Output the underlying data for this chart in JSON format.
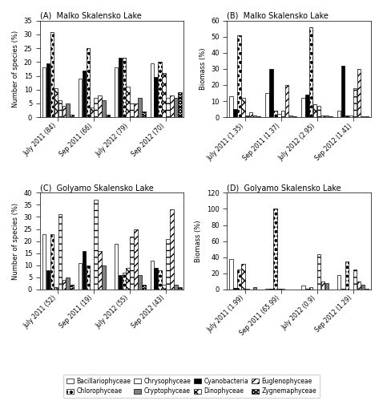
{
  "panel_A": {
    "title": "(A)  Malko Skalensko Lake",
    "ylabel": "Number of species (%)",
    "ylim": [
      0,
      35
    ],
    "yticks": [
      0,
      5,
      10,
      15,
      20,
      25,
      30,
      35
    ],
    "xticklabels": [
      "July 2011 (84)",
      "Sep 2011 (66)",
      "July 2012 (79)",
      "Sep 2012 (70)"
    ],
    "groups": [
      [
        18,
        19.5,
        31,
        10.5,
        6,
        4,
        5,
        1
      ],
      [
        14,
        17,
        25,
        3.5,
        7,
        8,
        6,
        1
      ],
      [
        18,
        21.5,
        21.5,
        11,
        5,
        5,
        7,
        2
      ],
      [
        19.5,
        14.5,
        20,
        16,
        7,
        8,
        7,
        9
      ]
    ]
  },
  "panel_B": {
    "title": "(B)  Malko Skalensko Lake",
    "ylabel": "Biomass (%)",
    "ylim": [
      0,
      60
    ],
    "yticks": [
      0,
      10,
      20,
      30,
      40,
      50,
      60
    ],
    "xticklabels": [
      "July 2011 (1.35)",
      "Sep 2011 (1.37)",
      "July 2012 (2.95)",
      "Sep 2012 (1.41)"
    ],
    "groups": [
      [
        13,
        5,
        51,
        12,
        1,
        3,
        1,
        0.5
      ],
      [
        15,
        30,
        4,
        2,
        4,
        20,
        1,
        0.5
      ],
      [
        12,
        14,
        56,
        8,
        7,
        1,
        1,
        0.5
      ],
      [
        4,
        32,
        1,
        1,
        18,
        30,
        0.5,
        0.5
      ]
    ]
  },
  "panel_C": {
    "title": "(C)  Golyamo Skalensko Lake",
    "ylabel": "Number of species (%)",
    "ylim": [
      0,
      40
    ],
    "yticks": [
      0,
      5,
      10,
      15,
      20,
      25,
      30,
      35,
      40
    ],
    "xticklabels": [
      "July 2011 (52)",
      "Sep 2011 (19)",
      "July 2012 (55)",
      "Sep 2012 (43)"
    ],
    "groups": [
      [
        23,
        8,
        23,
        1,
        31,
        4,
        5,
        2
      ],
      [
        11,
        16,
        10,
        0,
        37,
        16,
        10,
        0
      ],
      [
        19,
        6,
        7,
        9,
        22,
        25,
        6,
        2
      ],
      [
        12,
        9,
        8,
        2,
        21,
        33,
        2,
        1
      ]
    ]
  },
  "panel_D": {
    "title": "(D)  Golyamo Skalensko Lake",
    "ylabel": "Biomass (%)",
    "ylim": [
      0,
      120
    ],
    "yticks": [
      0,
      20,
      40,
      60,
      80,
      100,
      120
    ],
    "xticklabels": [
      "July 2011 (1.99)",
      "Sep 2011 (65.99)",
      "July 2012 (0.9)",
      "Sep 2012 (1.29)"
    ],
    "groups": [
      [
        38,
        2,
        25,
        32,
        1,
        0,
        3,
        0
      ],
      [
        1,
        0.5,
        100,
        1,
        0.5,
        0,
        0,
        0
      ],
      [
        5,
        0.5,
        3,
        0,
        44,
        10,
        8,
        0
      ],
      [
        18,
        0.5,
        35,
        0,
        25,
        10,
        6,
        1
      ]
    ]
  },
  "legend_labels_row1": [
    "Bacillariophyceae",
    "Chlorophyceae",
    "Chrysophyceae",
    "Cryptophyceae"
  ],
  "legend_labels_row2": [
    "Cyanobacteria",
    "Dinophyceae",
    "Euglenophyceae",
    "Zygnemaphyceae"
  ]
}
